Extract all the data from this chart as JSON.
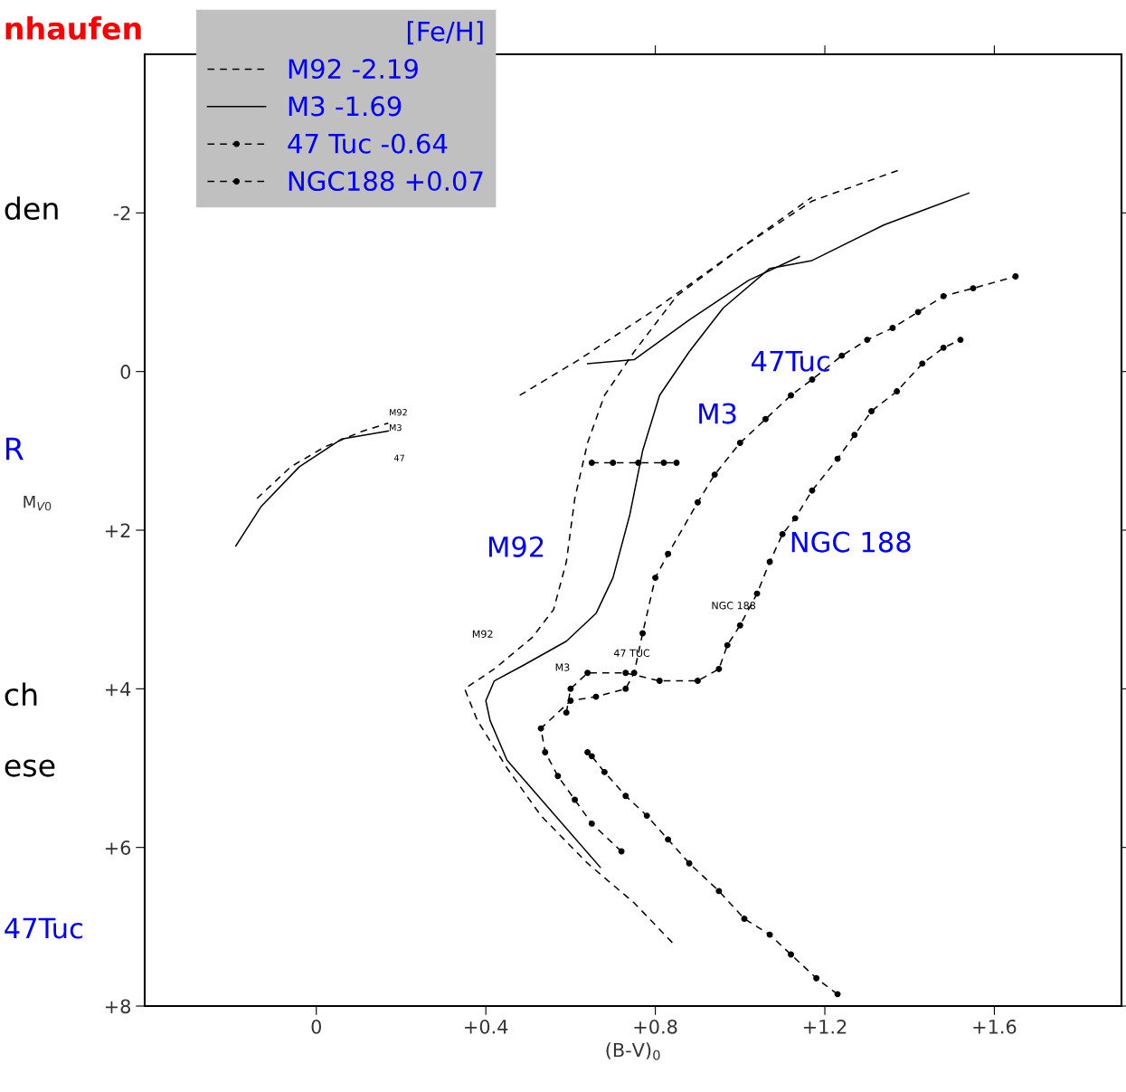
{
  "chart_data": {
    "type": "line",
    "xlabel": "(B-V)$_{0}$",
    "ylabel": "M$_{V0}$",
    "legend_title": "[Fe/H]",
    "legend": "top left",
    "grid": false,
    "xlim": [
      -0.405,
      1.9
    ],
    "ylim": [
      8,
      -4
    ],
    "xticks": [
      {
        "value": 0,
        "label": "0"
      },
      {
        "value": 0.4,
        "label": "+0.4"
      },
      {
        "value": 0.8,
        "label": "+0.8"
      },
      {
        "value": 1.2,
        "label": "+1.2"
      },
      {
        "value": 1.6,
        "label": "+1.6"
      }
    ],
    "yticks": [
      {
        "value": -2,
        "label": "-2"
      },
      {
        "value": 0,
        "label": "0"
      },
      {
        "value": 2,
        "label": "+2"
      },
      {
        "value": 4,
        "label": "+4"
      },
      {
        "value": 6,
        "label": "+6"
      },
      {
        "value": 8,
        "label": "+8"
      }
    ],
    "series": [
      {
        "name": "M92 -2.19",
        "color": "#000000",
        "line_style": "dashed",
        "marker": "none",
        "x": [
          0.84,
          0.75,
          0.64,
          0.53,
          0.45,
          0.38,
          0.35,
          0.42,
          0.51,
          0.56,
          0.59,
          0.61,
          0.64,
          0.68,
          0.75,
          0.85,
          1.0,
          1.17,
          1.38
        ],
        "values": [
          7.2,
          6.7,
          6.2,
          5.6,
          5.0,
          4.4,
          4.0,
          3.75,
          3.35,
          3.0,
          2.4,
          1.6,
          0.9,
          0.3,
          -0.25,
          -0.95,
          -1.55,
          -2.15,
          -2.55
        ]
      },
      {
        "color": "#000000",
        "line_style": "dashed",
        "marker": "none",
        "x": [
          0.48,
          0.62,
          0.79,
          0.96,
          1.17
        ],
        "values": [
          0.3,
          -0.15,
          -0.75,
          -1.4,
          -2.2
        ]
      },
      {
        "color": "#000000",
        "line_style": "dashed",
        "marker": "none",
        "x": [
          -0.14,
          -0.06,
          0.02,
          0.11,
          0.17
        ],
        "values": [
          1.6,
          1.2,
          0.95,
          0.75,
          0.65
        ]
      },
      {
        "name": "M3 -1.69",
        "color": "#000000",
        "line_style": "solid",
        "marker": "none",
        "x": [
          0.67,
          0.58,
          0.45,
          0.41,
          0.4,
          0.42,
          0.49,
          0.59,
          0.66,
          0.7,
          0.74,
          0.77,
          0.81,
          0.88,
          0.96,
          1.07,
          1.17,
          1.34,
          1.54
        ],
        "values": [
          6.25,
          5.7,
          4.9,
          4.4,
          4.15,
          3.9,
          3.7,
          3.4,
          3.05,
          2.6,
          1.8,
          1.0,
          0.3,
          -0.25,
          -0.8,
          -1.3,
          -1.4,
          -1.85,
          -2.25
        ]
      },
      {
        "color": "#000000",
        "line_style": "solid",
        "marker": "none",
        "x": [
          0.64,
          0.75,
          0.88,
          1.02,
          1.14
        ],
        "values": [
          -0.1,
          -0.15,
          -0.65,
          -1.15,
          -1.45
        ]
      },
      {
        "color": "#000000",
        "line_style": "solid",
        "marker": "none",
        "x": [
          -0.19,
          -0.13,
          -0.04,
          0.06,
          0.17
        ],
        "values": [
          2.2,
          1.7,
          1.2,
          0.85,
          0.75
        ]
      },
      {
        "name": "47 Tuc -0.64",
        "color": "#000000",
        "line_style": "dashed",
        "marker": "circle",
        "x": [
          0.72,
          0.65,
          0.61,
          0.57,
          0.54,
          0.53,
          0.6,
          0.66,
          0.73,
          0.75,
          0.77,
          0.8,
          0.83,
          0.9,
          0.94,
          1.0,
          1.06,
          1.12,
          1.17,
          1.24,
          1.3,
          1.36,
          1.42,
          1.48,
          1.55,
          1.65
        ],
        "values": [
          6.05,
          5.7,
          5.4,
          5.1,
          4.8,
          4.5,
          4.15,
          4.1,
          4.0,
          3.8,
          3.3,
          2.6,
          2.3,
          1.65,
          1.3,
          0.9,
          0.6,
          0.3,
          0.1,
          -0.2,
          -0.4,
          -0.55,
          -0.75,
          -0.95,
          -1.05,
          -1.2
        ]
      },
      {
        "color": "#000000",
        "line_style": "dashed",
        "marker": "circle",
        "x": [
          0.65,
          0.7,
          0.76,
          0.82,
          0.85
        ],
        "values": [
          1.15,
          1.15,
          1.15,
          1.15,
          1.15
        ]
      },
      {
        "name": "NGC188 +0.07",
        "color": "#000000",
        "line_style": "dashed",
        "marker": "circle",
        "x": [
          1.23,
          1.18,
          1.12,
          1.07,
          1.01,
          0.95,
          0.88,
          0.83,
          0.78,
          0.73,
          0.68,
          0.65,
          0.64
        ],
        "values": [
          7.85,
          7.65,
          7.35,
          7.1,
          6.9,
          6.55,
          6.2,
          5.9,
          5.6,
          5.35,
          5.05,
          4.85,
          4.8
        ]
      },
      {
        "color": "#000000",
        "line_style": "dashed",
        "marker": "circle",
        "x": [
          0.59,
          0.6,
          0.64,
          0.73,
          0.81,
          0.9,
          0.95,
          0.97,
          1.0,
          1.04,
          1.07,
          1.1,
          1.13,
          1.17,
          1.23,
          1.27,
          1.31,
          1.37,
          1.43,
          1.48,
          1.52
        ],
        "values": [
          4.3,
          4.0,
          3.8,
          3.8,
          3.9,
          3.9,
          3.75,
          3.45,
          3.2,
          2.8,
          2.4,
          2.05,
          1.85,
          1.5,
          1.1,
          0.8,
          0.5,
          0.25,
          -0.1,
          -0.3,
          -0.4
        ]
      }
    ],
    "annotations": [
      "M92",
      "M3",
      "47Tuc",
      "NGC 188",
      "M92",
      "M3",
      "47 TUC",
      "NGC 188",
      "M92",
      "M3",
      "47",
      "nhaufen",
      "den",
      "R",
      "ch",
      "ese",
      "47Tuc"
    ]
  }
}
